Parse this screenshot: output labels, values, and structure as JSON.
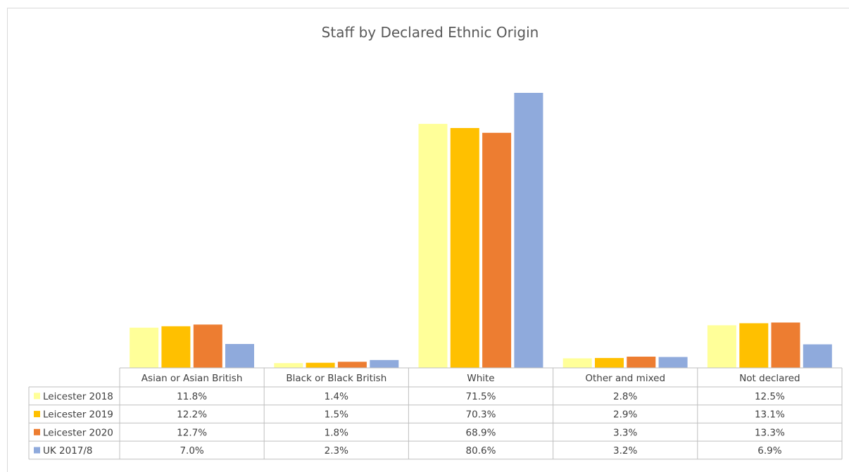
{
  "chart_data": {
    "type": "bar",
    "title": "Staff by Declared Ethnic Origin",
    "categories": [
      "Asian or Asian British",
      "Black or Black British",
      "White",
      "Other and mixed",
      "Not declared"
    ],
    "series": [
      {
        "name": "Leicester 2018",
        "color": "#ffff99",
        "values": [
          11.8,
          1.4,
          71.5,
          2.8,
          12.5
        ],
        "labels": [
          "11.8%",
          "1.4%",
          "71.5%",
          "2.8%",
          "12.5%"
        ]
      },
      {
        "name": "Leicester 2019",
        "color": "#ffc000",
        "values": [
          12.2,
          1.5,
          70.3,
          2.9,
          13.1
        ],
        "labels": [
          "12.2%",
          "1.5%",
          "70.3%",
          "2.9%",
          "13.1%"
        ]
      },
      {
        "name": "Leicester 2020",
        "color": "#ed7d31",
        "values": [
          12.7,
          1.8,
          68.9,
          3.3,
          13.3
        ],
        "labels": [
          "12.7%",
          "1.8%",
          "68.9%",
          "3.3%",
          "13.3%"
        ]
      },
      {
        "name": "UK 2017/8",
        "color": "#8faadc",
        "values": [
          7.0,
          2.3,
          80.6,
          3.2,
          6.9
        ],
        "labels": [
          "7.0%",
          "2.3%",
          "80.6%",
          "3.2%",
          "6.9%"
        ]
      }
    ],
    "ylim": [
      0,
      82
    ],
    "xlabel": "",
    "ylabel": "",
    "grid": false,
    "legend_position": "data table"
  }
}
